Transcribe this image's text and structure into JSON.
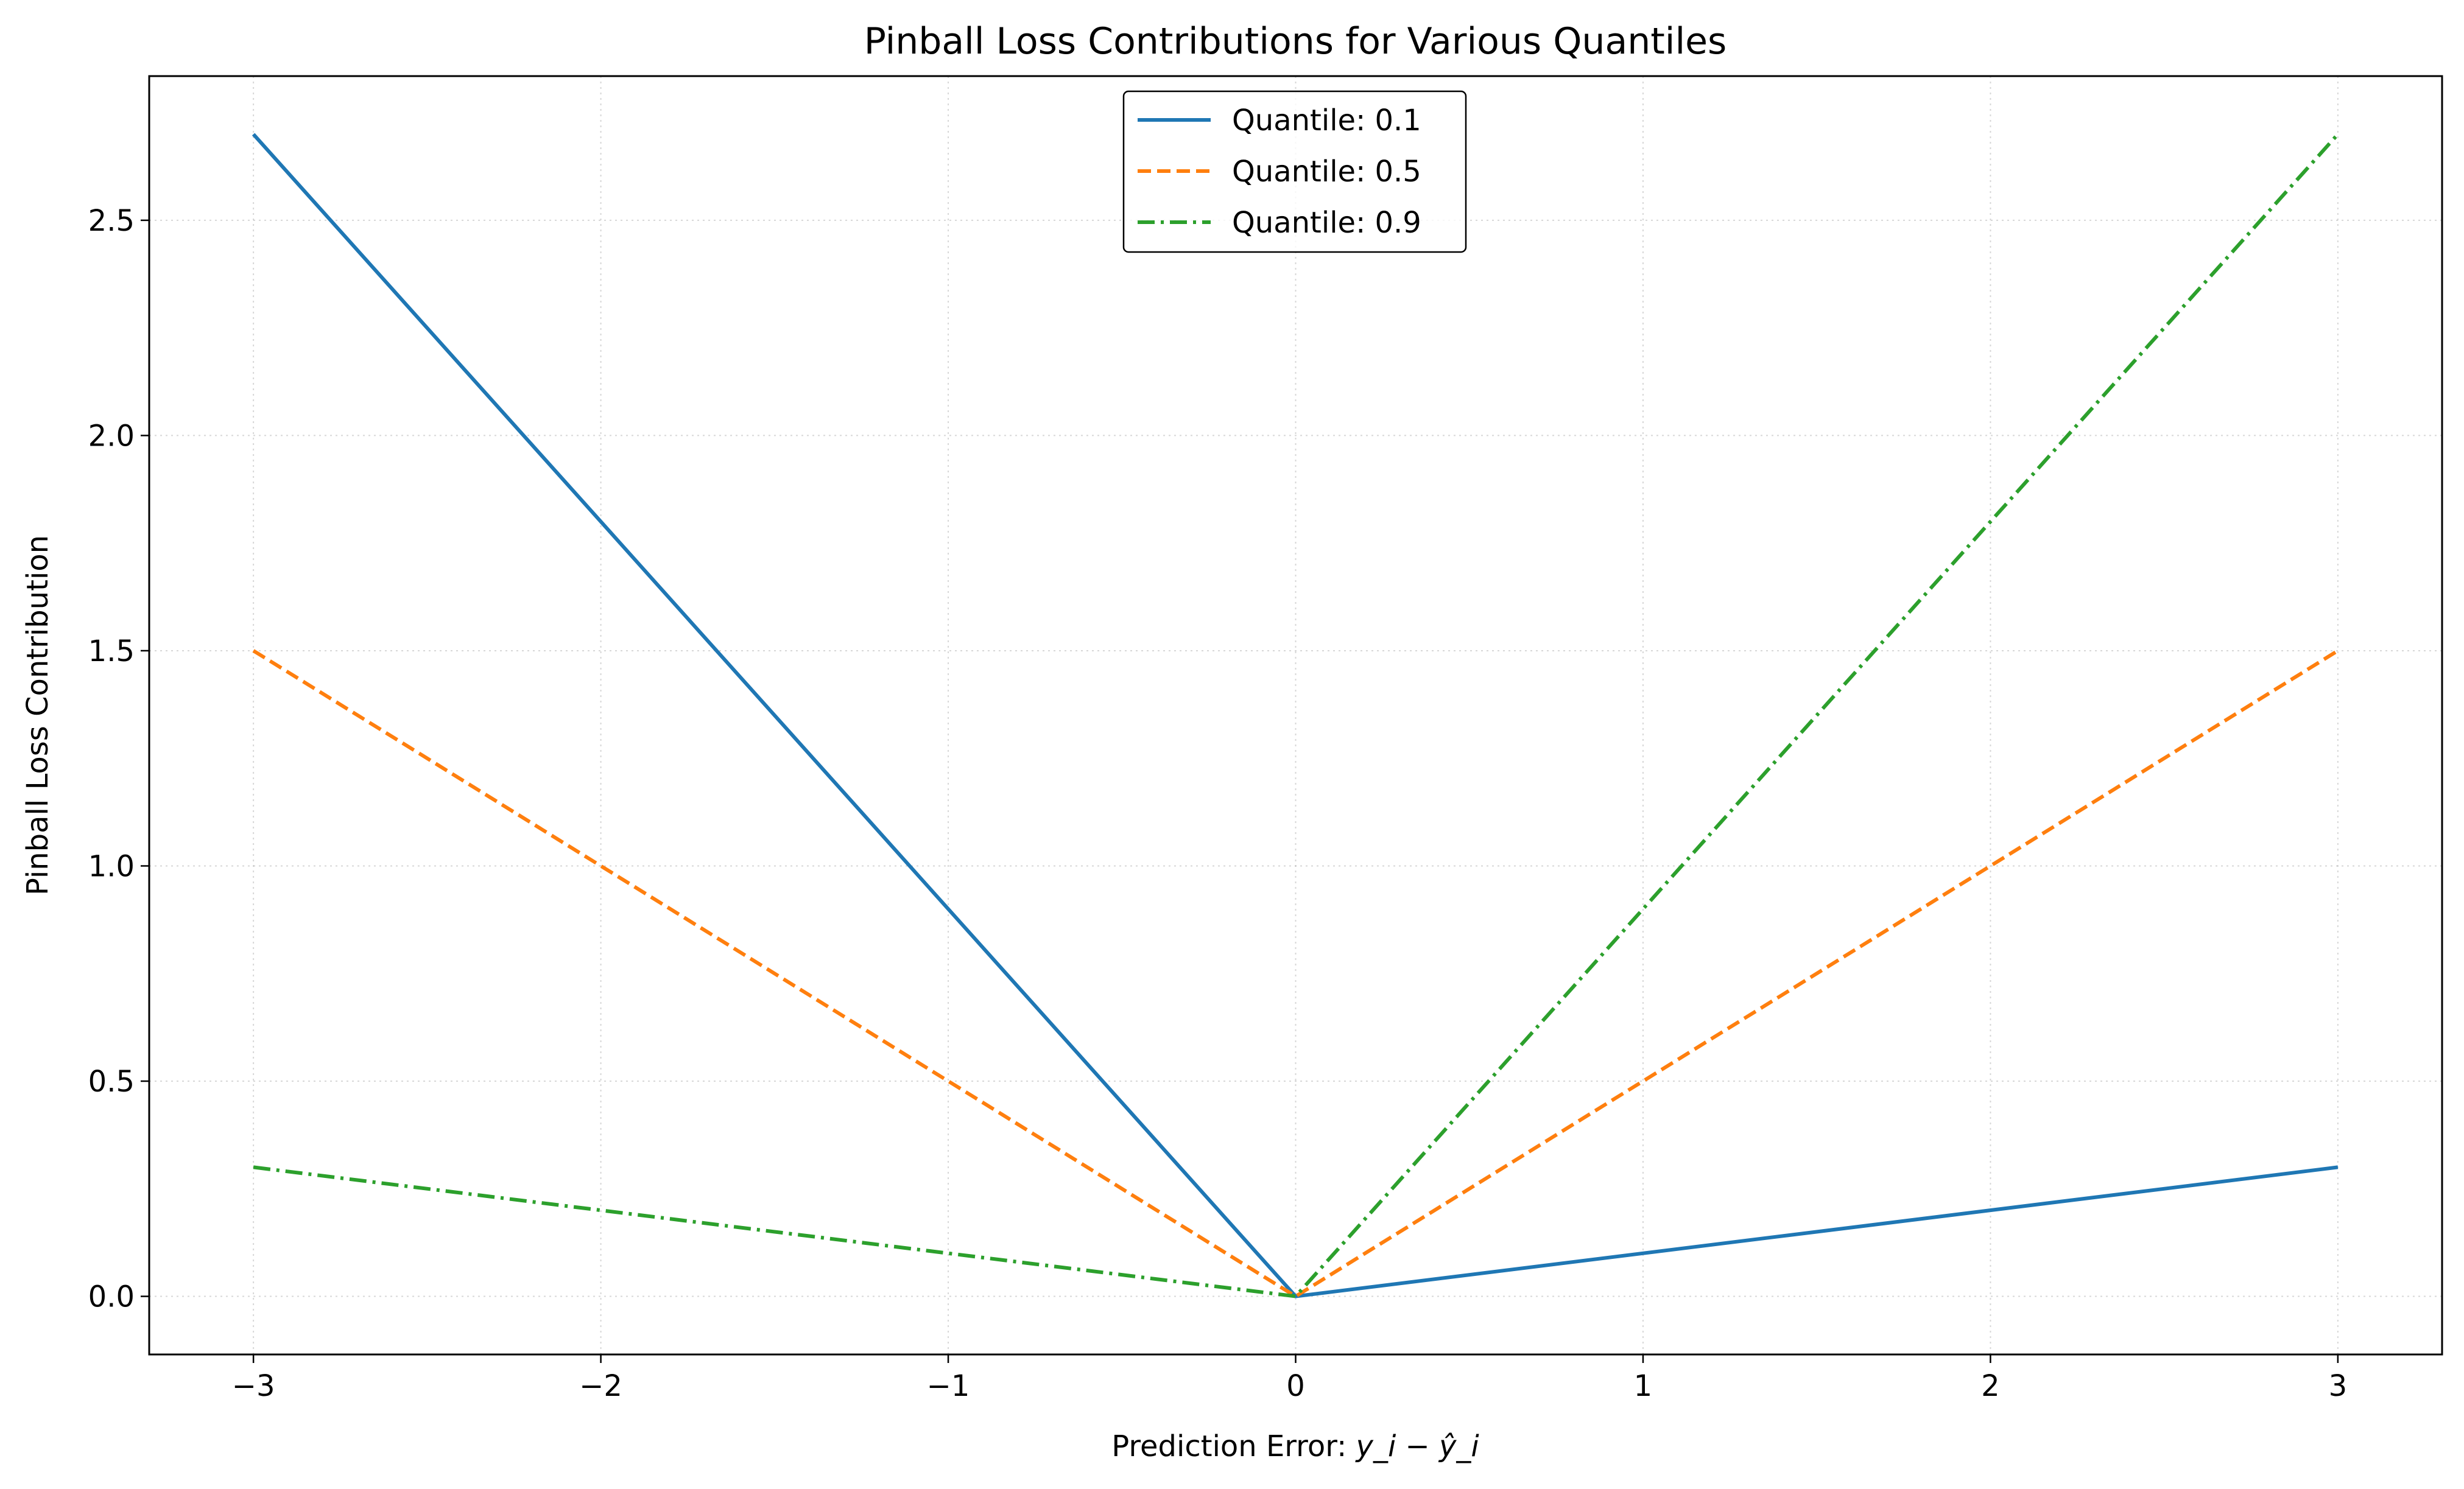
{
  "chart_data": {
    "type": "line",
    "title": "Pinball Loss Contributions for Various Quantiles",
    "xlabel": "Prediction Error: ",
    "xlabel_math": "y_i − ŷ_i",
    "ylabel": "Pinball Loss Contribution",
    "xlim": [
      -3.3,
      3.3
    ],
    "ylim": [
      -0.135,
      2.835
    ],
    "xticks": [
      -3,
      -2,
      -1,
      0,
      1,
      2,
      3
    ],
    "xtick_labels": [
      "−3",
      "−2",
      "−1",
      "0",
      "1",
      "2",
      "3"
    ],
    "yticks": [
      0.0,
      0.5,
      1.0,
      1.5,
      2.0,
      2.5
    ],
    "ytick_labels": [
      "0.0",
      "0.5",
      "1.0",
      "1.5",
      "2.0",
      "2.5"
    ],
    "grid": true,
    "legend_position": "top-center",
    "series": [
      {
        "name": "Quantile: 0.1",
        "color": "#1f77b4",
        "style": "solid",
        "x": [
          -3,
          0,
          3
        ],
        "y": [
          2.7,
          0.0,
          0.3
        ]
      },
      {
        "name": "Quantile: 0.5",
        "color": "#ff7f0e",
        "style": "dashed",
        "x": [
          -3,
          0,
          3
        ],
        "y": [
          1.5,
          0.0,
          1.5
        ]
      },
      {
        "name": "Quantile: 0.9",
        "color": "#2ca02c",
        "style": "dashdot",
        "x": [
          -3,
          0,
          3
        ],
        "y": [
          0.3,
          0.0,
          2.7
        ]
      }
    ]
  }
}
